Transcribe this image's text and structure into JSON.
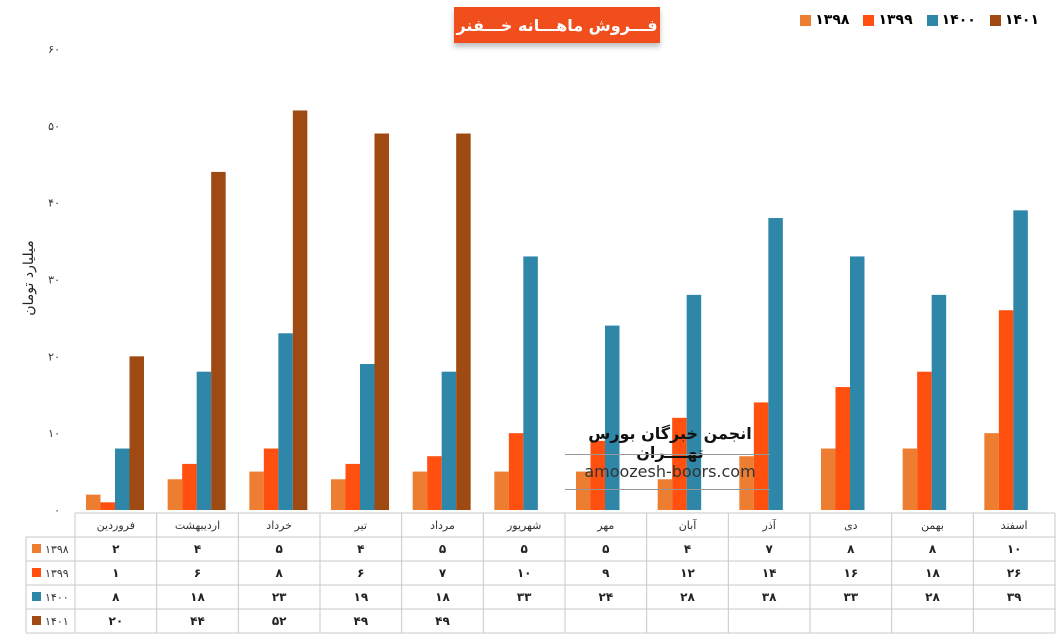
{
  "chart_data": {
    "type": "bar",
    "title": "فـــروش ماهـــانه خـــفنر",
    "ylabel": "میلیارد تومان",
    "ylim": [
      0,
      60
    ],
    "yticks": [
      "۰",
      "۱۰",
      "۲۰",
      "۳۰",
      "۴۰",
      "۵۰",
      "۶۰"
    ],
    "categories": [
      "فروردین",
      "اردیبهشت",
      "خرداد",
      "تیر",
      "مرداد",
      "شهریور",
      "مهر",
      "آبان",
      "آذر",
      "دی",
      "بهمن",
      "اسفند"
    ],
    "series": [
      {
        "name": "۱۳۹۸",
        "color": "#ed7d31",
        "values": [
          2,
          4,
          5,
          4,
          5,
          5,
          5,
          4,
          7,
          8,
          8,
          10
        ],
        "labels": [
          "۲",
          "۴",
          "۵",
          "۴",
          "۵",
          "۵",
          "۵",
          "۴",
          "۷",
          "۸",
          "۸",
          "۱۰"
        ]
      },
      {
        "name": "۱۳۹۹",
        "color": "#ff5010",
        "values": [
          1,
          6,
          8,
          6,
          7,
          10,
          9,
          12,
          14,
          16,
          18,
          26
        ],
        "labels": [
          "۱",
          "۶",
          "۸",
          "۶",
          "۷",
          "۱۰",
          "۹",
          "۱۲",
          "۱۴",
          "۱۶",
          "۱۸",
          "۲۶"
        ]
      },
      {
        "name": "۱۴۰۰",
        "color": "#2e86a8",
        "values": [
          8,
          18,
          23,
          19,
          18,
          33,
          24,
          28,
          38,
          33,
          28,
          39
        ],
        "labels": [
          "۸",
          "۱۸",
          "۲۳",
          "۱۹",
          "۱۸",
          "۳۳",
          "۲۴",
          "۲۸",
          "۳۸",
          "۳۳",
          "۲۸",
          "۳۹"
        ]
      },
      {
        "name": "۱۴۰۱",
        "color": "#9e4a12",
        "values": [
          20,
          44,
          52,
          49,
          49,
          null,
          null,
          null,
          null,
          null,
          null,
          null
        ],
        "labels": [
          "۲۰",
          "۴۴",
          "۵۲",
          "۴۹",
          "۴۹",
          "",
          "",
          "",
          "",
          "",
          "",
          ""
        ]
      }
    ],
    "legend_position": "top-right",
    "grid": false,
    "has_data_table": true
  },
  "watermark": {
    "line1": "انجمن خبرگان بورس تهــــران",
    "line2": "amoozesh-boors.com"
  }
}
